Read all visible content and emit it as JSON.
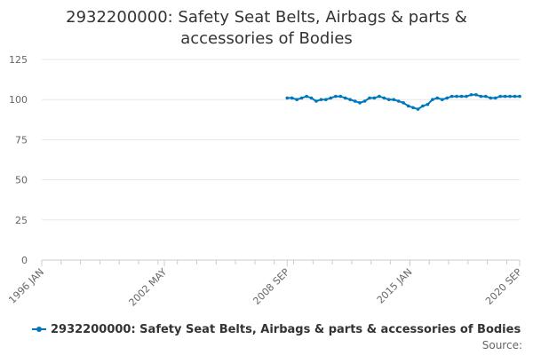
{
  "chart_data": {
    "type": "line",
    "title_lines": [
      "2932200000: Safety Seat Belts, Airbags & parts &",
      "accessories of Bodies"
    ],
    "xlabel": "",
    "ylabel": "",
    "ylim": [
      0,
      125
    ],
    "yticks": [
      0,
      25,
      50,
      75,
      100,
      125
    ],
    "xlim": [
      "1996-01",
      "2020-09"
    ],
    "xtick_labels": [
      "1996 JAN",
      "2002 MAY",
      "2008 SEP",
      "2015 JAN",
      "2020 SEP"
    ],
    "grid": true,
    "legend_position": "bottom",
    "series": [
      {
        "name": "2932200000: Safety Seat Belts, Airbags & parts & accessories of Bodies",
        "color": "#0077bb",
        "x": [
          "2008-09",
          "2008-12",
          "2009-03",
          "2009-06",
          "2009-09",
          "2009-12",
          "2010-03",
          "2010-06",
          "2010-09",
          "2010-12",
          "2011-03",
          "2011-06",
          "2011-09",
          "2011-12",
          "2012-03",
          "2012-06",
          "2012-09",
          "2012-12",
          "2013-03",
          "2013-06",
          "2013-09",
          "2013-12",
          "2014-03",
          "2014-06",
          "2014-09",
          "2014-12",
          "2015-03",
          "2015-06",
          "2015-09",
          "2015-12",
          "2016-03",
          "2016-06",
          "2016-09",
          "2016-12",
          "2017-03",
          "2017-06",
          "2017-09",
          "2017-12",
          "2018-03",
          "2018-06",
          "2018-09",
          "2018-12",
          "2019-03",
          "2019-06",
          "2019-09",
          "2019-12",
          "2020-03",
          "2020-06",
          "2020-09"
        ],
        "y": [
          101,
          101,
          100,
          101,
          102,
          101,
          99,
          100,
          100,
          101,
          102,
          102,
          101,
          100,
          99,
          98,
          99,
          101,
          101,
          102,
          101,
          100,
          100,
          99,
          98,
          96,
          95,
          94,
          96,
          97,
          100,
          101,
          100,
          101,
          102,
          102,
          102,
          102,
          103,
          103,
          102,
          102,
          101,
          101,
          102,
          102,
          102,
          102,
          102
        ]
      }
    ]
  },
  "legend": {
    "label": "2932200000: Safety Seat Belts, Airbags & parts & accessories of Bodies"
  },
  "footer": {
    "source_label": "Source:"
  }
}
